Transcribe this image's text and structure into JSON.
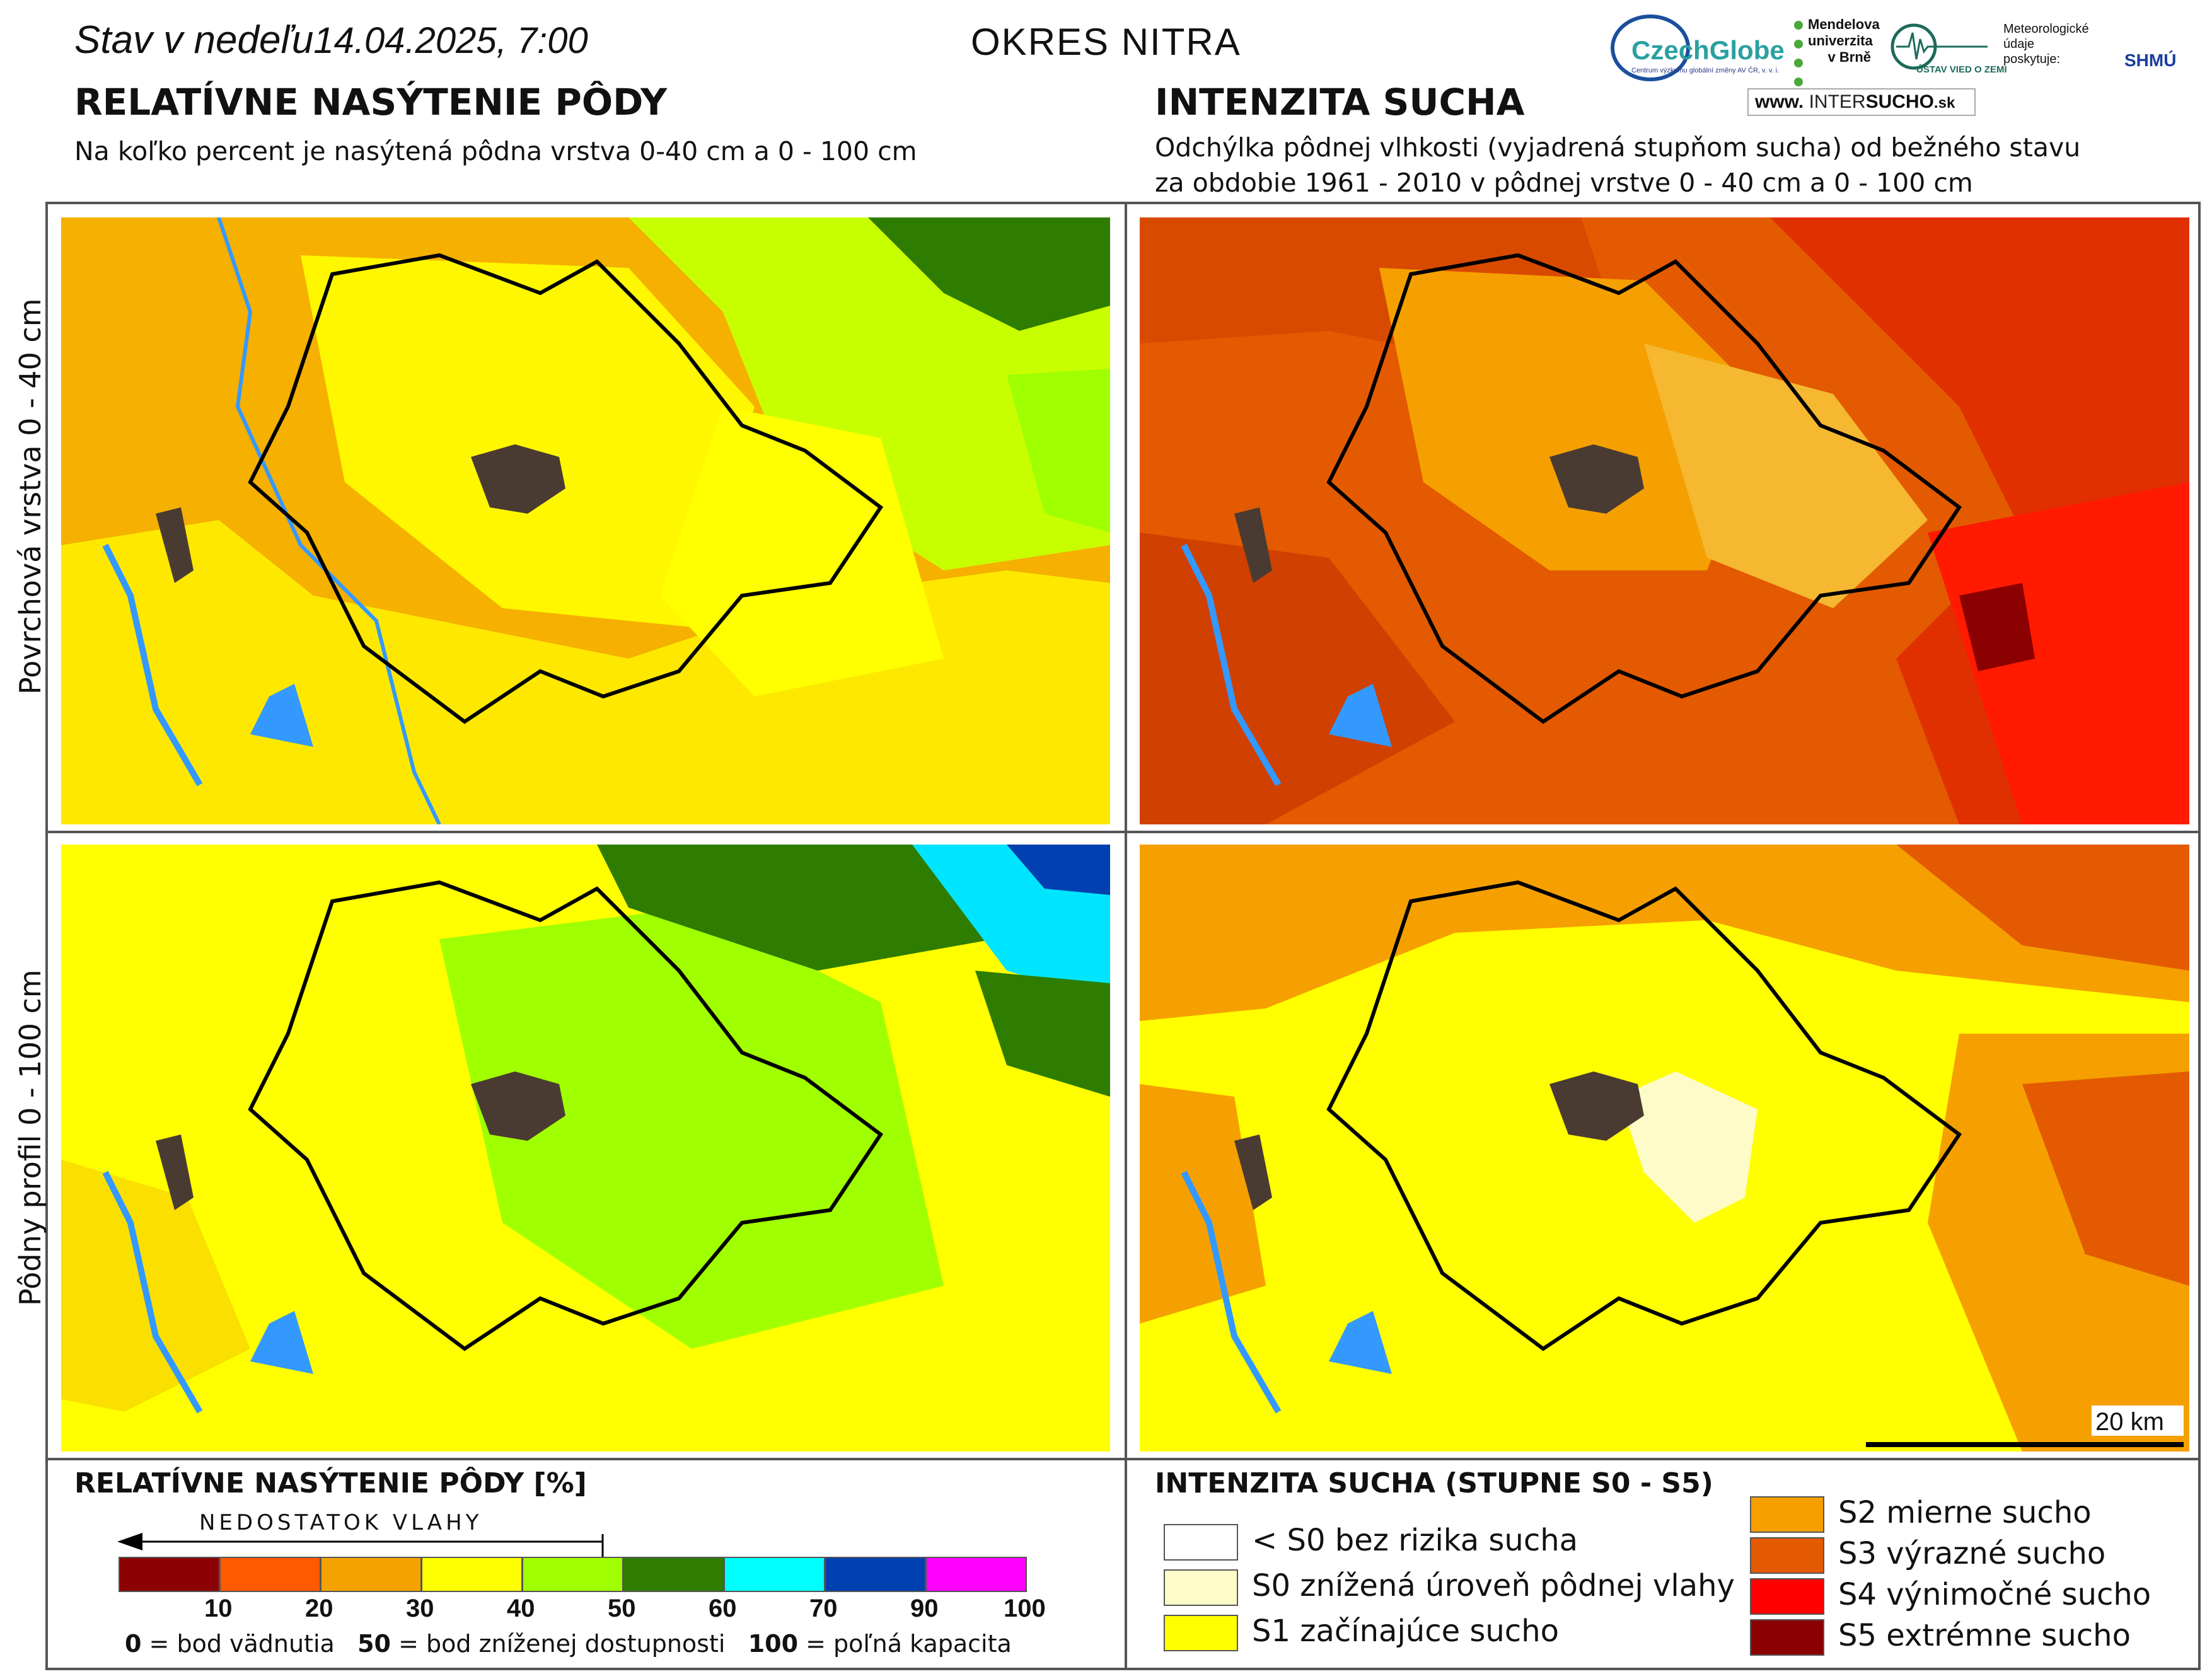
{
  "header": {
    "date_prefix": "Stav v nedeľu",
    "date_value": "14.04.2025, 7:00",
    "district": "OKRES NITRA"
  },
  "left_panel": {
    "title": "RELATÍVNE NASÝTENIE PÔDY",
    "subtitle": "Na koľko percent je nasýtená pôdna vrstva 0-40 cm a 0 - 100 cm"
  },
  "right_panel": {
    "title": "INTENZITA SUCHA",
    "subtitle_line1": "Odchýlka pôdnej vlhkosti (vyjadrená stupňom sucha) od bežného stavu",
    "subtitle_line2": "za obdobie 1961 - 2010 v pôdnej vrstve 0 - 40 cm a 0 - 100 cm"
  },
  "logos": {
    "czechglobe": "CzechGlobe",
    "czechglobe_sub": "Centrum výzkumu globální změny AV ČR, v. v. i.",
    "mendelu_1": "Mendelova",
    "mendelu_2": "univerzita",
    "mendelu_3": "v Brně",
    "ustav": "ÚSTAV VIED O ZEMI",
    "meteo_1": "Meteorologické",
    "meteo_2": "údaje",
    "meteo_3": "poskytuje:",
    "shmu": "SHMÚ",
    "web_prefix": "www.",
    "web_inter": "INTER",
    "web_sucho": "SUCHO",
    "web_suffix": ".sk"
  },
  "row_labels": {
    "top": "Povrchová vrstva 0 - 40 cm",
    "bottom": "Pôdny profil 0 - 100 cm"
  },
  "scale_bar": "20 km",
  "saturation_legend": {
    "title": "RELATÍVNE NASÝTENIE PÔDY [%]",
    "arrow_label": "NEDOSTATOK VLAHY",
    "colors": [
      "#8b0000",
      "#ff5a00",
      "#f5a300",
      "#ffff00",
      "#a0ff00",
      "#2e7d00",
      "#00ffff",
      "#0040b0",
      "#ff00ff"
    ],
    "ticks": [
      "10",
      "20",
      "30",
      "40",
      "50",
      "60",
      "70",
      "90",
      "100"
    ],
    "note_0_num": "0",
    "note_0_text": "= bod vädnutia",
    "note_50_num": "50",
    "note_50_text": "= bod zníženej dostupnosti",
    "note_100_num": "100",
    "note_100_text": "= poľná kapacita"
  },
  "drought_legend": {
    "title": "INTENZITA SUCHA (STUPNE S0 - S5)",
    "items": [
      {
        "label": "< S0 bez rizika sucha",
        "color": "#ffffff"
      },
      {
        "label": "S0 znížená úroveň pôdnej vlahy",
        "color": "#fdfbc8"
      },
      {
        "label": "S1 začínajúce sucho",
        "color": "#ffff00"
      },
      {
        "label": "S2 mierne sucho",
        "color": "#f5a000"
      },
      {
        "label": "S3 výrazné sucho",
        "color": "#e35a00"
      },
      {
        "label": "S4 výnimočné sucho",
        "color": "#ff0000"
      },
      {
        "label": "S5 extrémne sucho",
        "color": "#8b0000"
      }
    ]
  }
}
